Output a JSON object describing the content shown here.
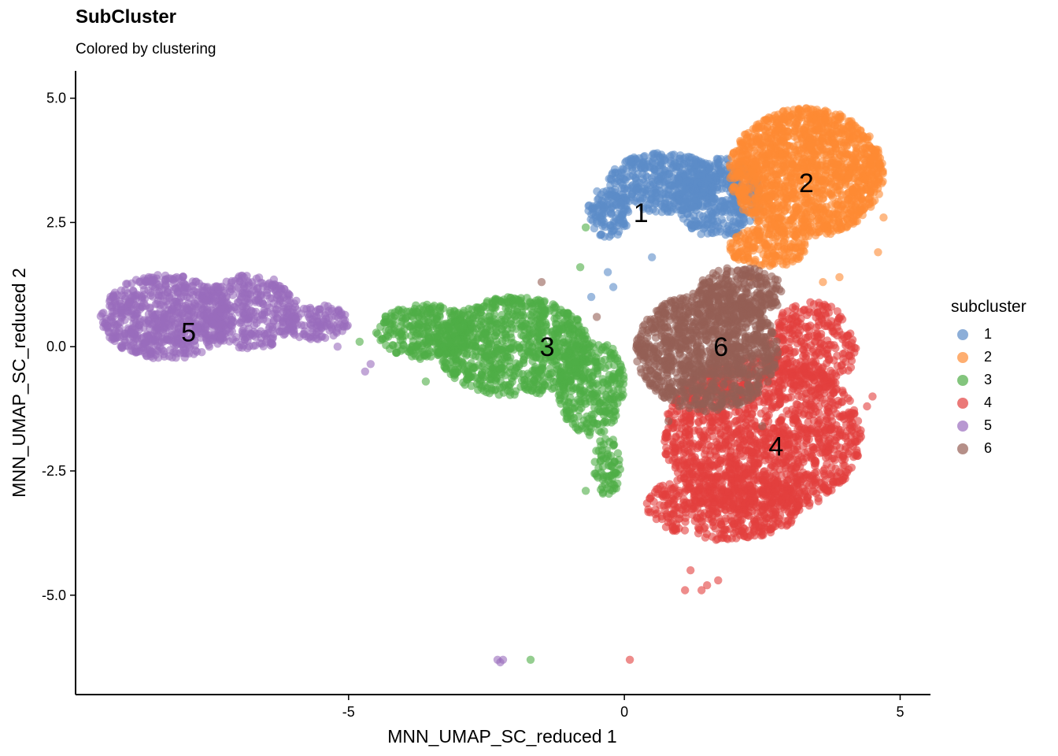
{
  "chart_data": {
    "type": "scatter",
    "title": "SubCluster",
    "subtitle": "Colored by clustering",
    "xlabel": "MNN_UMAP_SC_reduced 1",
    "ylabel": "MNN_UMAP_SC_reduced 2",
    "xlim": [
      -9.95,
      5.55
    ],
    "ylim": [
      -7.0,
      5.55
    ],
    "x_ticks": [
      -5,
      0,
      5
    ],
    "x_tick_labels": [
      "-5",
      "0",
      "5"
    ],
    "y_ticks": [
      5.0,
      2.5,
      0.0,
      -2.5,
      -5.0
    ],
    "y_tick_labels": [
      "5.0",
      "2.5",
      "0.0",
      "-2.5",
      "-5.0"
    ],
    "grid": false,
    "legend": {
      "title": "subcluster",
      "position": "right",
      "entries": [
        "1",
        "2",
        "3",
        "4",
        "5",
        "6"
      ]
    },
    "colors": {
      "1": "#5b8cc8",
      "2": "#fe8b33",
      "3": "#4fad46",
      "4": "#e3403e",
      "5": "#9a6cbd",
      "6": "#955f55"
    },
    "point_opacity": 0.6,
    "cluster_labels": [
      {
        "label": "1",
        "x": 0.3,
        "y": 2.7
      },
      {
        "label": "2",
        "x": 3.3,
        "y": 3.3
      },
      {
        "label": "3",
        "x": -1.4,
        "y": 0.0
      },
      {
        "label": "4",
        "x": 2.75,
        "y": -2.0
      },
      {
        "label": "5",
        "x": -7.9,
        "y": 0.3
      },
      {
        "label": "6",
        "x": 1.75,
        "y": 0.0
      }
    ],
    "series": [
      {
        "name": "1",
        "regions": [
          {
            "cx": 0.7,
            "cy": 3.3,
            "rx": 1.0,
            "ry": 0.6,
            "n": 420
          },
          {
            "cx": 1.7,
            "cy": 3.0,
            "rx": 0.8,
            "ry": 0.8,
            "n": 380
          },
          {
            "cx": -0.3,
            "cy": 2.7,
            "rx": 0.4,
            "ry": 0.5,
            "n": 120
          }
        ],
        "points": [
          [
            -0.3,
            1.5
          ],
          [
            -0.6,
            1.0
          ],
          [
            -0.2,
            1.2
          ],
          [
            0.5,
            1.8
          ]
        ]
      },
      {
        "name": "2",
        "regions": [
          {
            "cx": 3.3,
            "cy": 3.5,
            "rx": 1.4,
            "ry": 1.3,
            "n": 1500
          },
          {
            "cx": 2.6,
            "cy": 2.0,
            "rx": 0.7,
            "ry": 0.4,
            "n": 180
          }
        ],
        "points": [
          [
            4.7,
            2.6
          ],
          [
            4.6,
            1.9
          ],
          [
            3.6,
            1.3
          ],
          [
            3.9,
            1.4
          ],
          [
            2.3,
            1.4
          ]
        ]
      },
      {
        "name": "3",
        "regions": [
          {
            "cx": -2.0,
            "cy": 0.0,
            "rx": 1.4,
            "ry": 1.0,
            "n": 850
          },
          {
            "cx": -3.6,
            "cy": 0.3,
            "rx": 0.9,
            "ry": 0.55,
            "n": 300
          },
          {
            "cx": -0.6,
            "cy": -0.8,
            "rx": 0.6,
            "ry": 1.0,
            "n": 300
          },
          {
            "cx": -0.3,
            "cy": -2.4,
            "rx": 0.25,
            "ry": 0.6,
            "n": 70
          }
        ],
        "points": [
          [
            -1.7,
            -6.3
          ],
          [
            -0.7,
            -2.9
          ],
          [
            -0.5,
            -2.6
          ],
          [
            -0.7,
            2.4
          ],
          [
            -0.8,
            1.6
          ],
          [
            -4.8,
            0.1
          ],
          [
            -3.6,
            -0.7
          ]
        ]
      },
      {
        "name": "4",
        "regions": [
          {
            "cx": 2.5,
            "cy": -1.8,
            "rx": 1.8,
            "ry": 1.6,
            "n": 1500
          },
          {
            "cx": 1.8,
            "cy": -3.2,
            "rx": 1.4,
            "ry": 0.7,
            "n": 500
          },
          {
            "cx": 3.4,
            "cy": 0.0,
            "rx": 0.8,
            "ry": 0.9,
            "n": 300
          }
        ],
        "points": [
          [
            0.1,
            -6.3
          ],
          [
            1.1,
            -4.9
          ],
          [
            1.4,
            -4.9
          ],
          [
            1.7,
            -4.7
          ],
          [
            1.2,
            -4.5
          ],
          [
            1.5,
            -4.8
          ],
          [
            4.5,
            -1.0
          ],
          [
            4.4,
            -1.2
          ]
        ]
      },
      {
        "name": "5",
        "regions": [
          {
            "cx": -8.3,
            "cy": 0.6,
            "rx": 1.2,
            "ry": 0.85,
            "n": 700
          },
          {
            "cx": -6.8,
            "cy": 0.7,
            "rx": 0.9,
            "ry": 0.75,
            "n": 350
          },
          {
            "cx": -5.6,
            "cy": 0.5,
            "rx": 0.6,
            "ry": 0.35,
            "n": 120
          }
        ],
        "points": [
          [
            -2.3,
            -6.3
          ],
          [
            -2.25,
            -6.35
          ],
          [
            -2.2,
            -6.3
          ],
          [
            -4.7,
            -0.5
          ],
          [
            -4.6,
            -0.35
          ],
          [
            -5.2,
            0.0
          ]
        ]
      },
      {
        "name": "6",
        "regions": [
          {
            "cx": 1.5,
            "cy": -0.1,
            "rx": 1.3,
            "ry": 1.2,
            "n": 1100
          },
          {
            "cx": 2.1,
            "cy": 1.1,
            "rx": 0.8,
            "ry": 0.5,
            "n": 250
          }
        ],
        "points": [
          [
            -1.5,
            1.3
          ],
          [
            -0.5,
            0.6
          ],
          [
            2.5,
            -1.6
          ],
          [
            0.8,
            -1.5
          ]
        ]
      }
    ]
  }
}
